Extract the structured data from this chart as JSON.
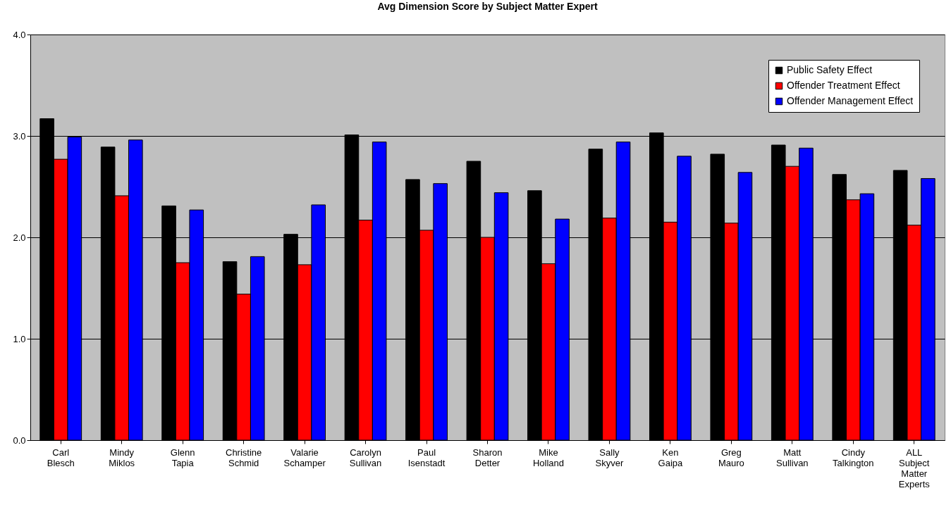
{
  "chart_data": {
    "type": "bar",
    "title": "Avg Dimension Score by Subject Matter Expert",
    "categories": [
      "Carl Blesch",
      "Mindy Miklos",
      "Glenn Tapia",
      "Christine Schmid",
      "Valarie Schamper",
      "Carolyn Sullivan",
      "Paul Isenstadt",
      "Sharon Detter",
      "Mike Holland",
      "Sally Skyver",
      "Ken Gaipa",
      "Greg Mauro",
      "Matt Sullivan",
      "Cindy Talkington",
      "ALL Subject Matter Experts"
    ],
    "series": [
      {
        "name": "Public Safety Effect",
        "color": "#000000",
        "values": [
          3.17,
          2.89,
          2.31,
          1.76,
          2.03,
          3.01,
          2.57,
          2.75,
          2.46,
          2.87,
          3.03,
          2.82,
          2.91,
          2.62,
          2.66
        ]
      },
      {
        "name": "Offender Treatment Effect",
        "color": "#ff0000",
        "values": [
          2.77,
          2.41,
          1.75,
          1.44,
          1.73,
          2.17,
          2.07,
          2.0,
          1.74,
          2.19,
          2.15,
          2.14,
          2.7,
          2.37,
          2.12
        ]
      },
      {
        "name": "Offender Management Effect",
        "color": "#0000ff",
        "values": [
          2.99,
          2.96,
          2.27,
          1.81,
          2.32,
          2.94,
          2.53,
          2.44,
          2.18,
          2.94,
          2.8,
          2.64,
          2.88,
          2.43,
          2.58
        ]
      }
    ],
    "ylim": [
      0,
      4
    ],
    "yticks": [
      {
        "value": 0,
        "label": "0.0"
      },
      {
        "value": 1,
        "label": "1.0"
      },
      {
        "value": 2,
        "label": "2.0"
      },
      {
        "value": 3,
        "label": "3.0"
      },
      {
        "value": 4,
        "label": "4.0"
      }
    ],
    "grid": "y",
    "legend": "top right"
  }
}
